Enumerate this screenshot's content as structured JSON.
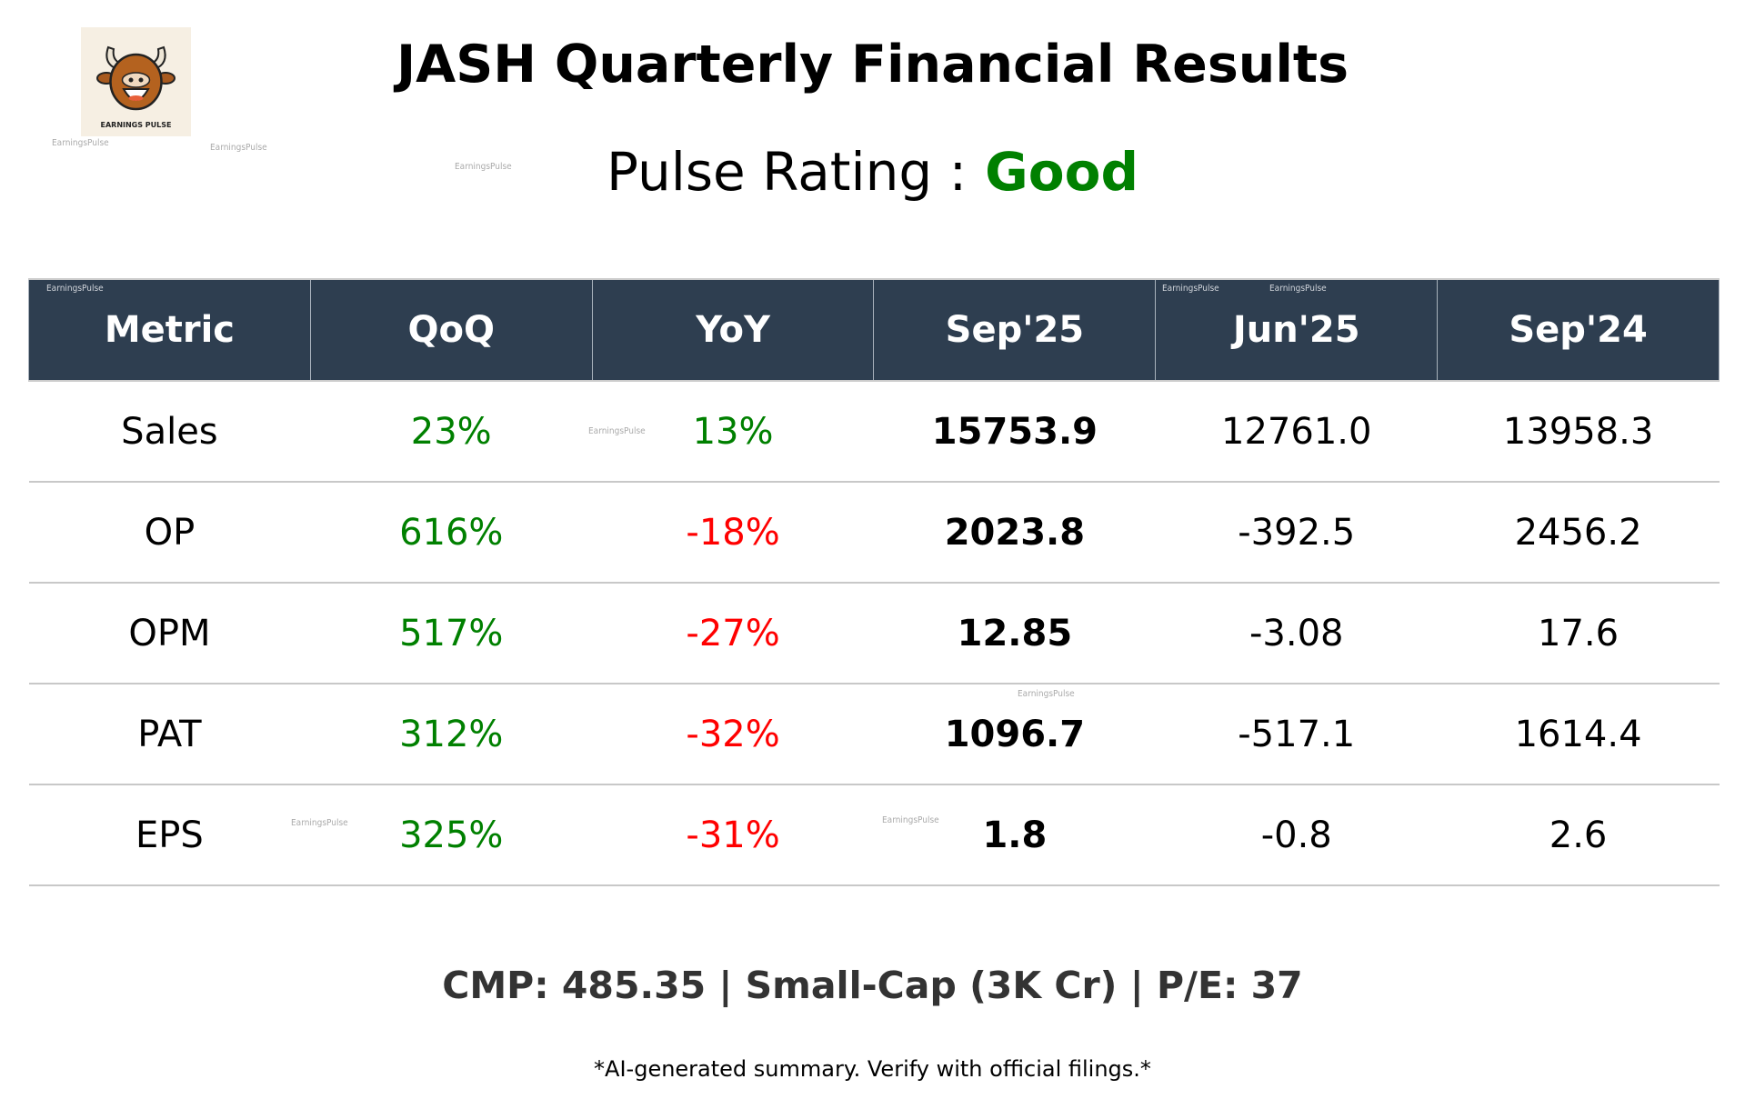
{
  "brand": {
    "logo_text": "EARNINGS PULSE",
    "watermark": "EarningsPulse"
  },
  "title": "JASH Quarterly Financial Results",
  "rating": {
    "label": "Pulse Rating :",
    "value": "Good",
    "color": "#008000"
  },
  "table": {
    "headers": [
      "Metric",
      "QoQ",
      "YoY",
      "Sep'25",
      "Jun'25",
      "Sep'24"
    ],
    "header_bg": "#2e3e50",
    "rows": [
      {
        "metric": "Sales",
        "qoq": "23%",
        "qoq_dir": "pos",
        "yoy": "13%",
        "yoy_dir": "pos",
        "sep25": "15753.9",
        "jun25": "12761.0",
        "sep24": "13958.3"
      },
      {
        "metric": "OP",
        "qoq": "616%",
        "qoq_dir": "pos",
        "yoy": "-18%",
        "yoy_dir": "neg",
        "sep25": "2023.8",
        "jun25": "-392.5",
        "sep24": "2456.2"
      },
      {
        "metric": "OPM",
        "qoq": "517%",
        "qoq_dir": "pos",
        "yoy": "-27%",
        "yoy_dir": "neg",
        "sep25": "12.85",
        "jun25": "-3.08",
        "sep24": "17.6"
      },
      {
        "metric": "PAT",
        "qoq": "312%",
        "qoq_dir": "pos",
        "yoy": "-32%",
        "yoy_dir": "neg",
        "sep25": "1096.7",
        "jun25": "-517.1",
        "sep24": "1614.4"
      },
      {
        "metric": "EPS",
        "qoq": "325%",
        "qoq_dir": "pos",
        "yoy": "-31%",
        "yoy_dir": "neg",
        "sep25": "1.8",
        "jun25": "-0.8",
        "sep24": "2.6"
      }
    ],
    "positive_color": "#008000",
    "negative_color": "#ff0000"
  },
  "summary": "CMP: 485.35 | Small-Cap (3K Cr) | P/E: 37",
  "disclaimer": "*AI-generated summary. Verify with official filings.*"
}
